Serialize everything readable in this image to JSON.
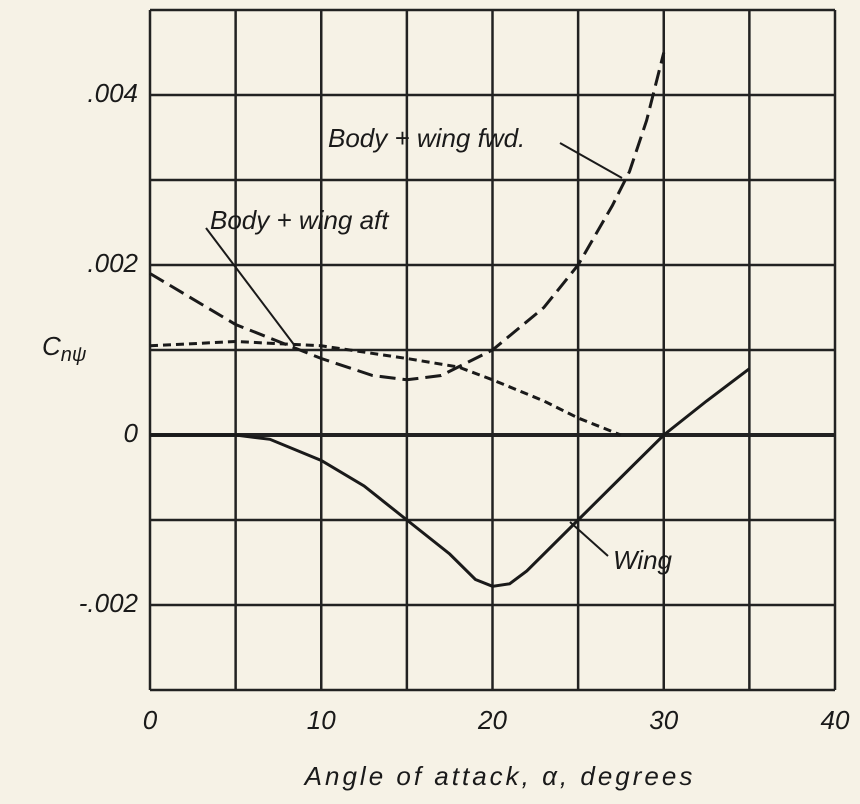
{
  "chart_data": {
    "type": "line",
    "xlabel": "Angle of attack, α, degrees",
    "ylabel": {
      "symbol": "C",
      "subscript": "nψ"
    },
    "xlim": [
      0,
      40
    ],
    "ylim": [
      -0.003,
      0.005
    ],
    "xticks": [
      0,
      10,
      20,
      30,
      40
    ],
    "xminor": [
      5,
      15,
      25,
      35
    ],
    "yticks": [
      {
        "value": -0.002,
        "label": "-.002"
      },
      0,
      {
        "value": 0.002,
        "label": ".002"
      },
      {
        "value": 0.004,
        "label": ".004"
      }
    ],
    "yminor": [
      -0.003,
      -0.001,
      0.001,
      0.003,
      0.005
    ],
    "grid": true,
    "series": [
      {
        "name": "Wing",
        "color": "#1a1a1a",
        "dash": "solid",
        "x": [
          0,
          5,
          7,
          10,
          12.5,
          15,
          17.5,
          19,
          20,
          21,
          22,
          25,
          27.5,
          30,
          32.5,
          35
        ],
        "values": [
          0,
          0,
          -5e-05,
          -0.0003,
          -0.0006,
          -0.001,
          -0.0014,
          -0.0017,
          -0.00178,
          -0.00175,
          -0.0016,
          -0.001,
          -0.0005,
          0,
          0.0004,
          0.00078
        ]
      },
      {
        "name": "Body + wing fwd.",
        "color": "#1a1a1a",
        "dash": "long",
        "x": [
          0,
          5,
          10,
          13,
          15,
          17,
          20,
          23,
          25,
          27,
          28,
          29,
          30
        ],
        "values": [
          0.0019,
          0.0013,
          0.0009,
          0.0007,
          0.00065,
          0.0007,
          0.001,
          0.0015,
          0.002,
          0.0027,
          0.0031,
          0.0037,
          0.0045
        ]
      },
      {
        "name": "Body + wing aft",
        "color": "#1a1a1a",
        "dash": "short",
        "x": [
          0,
          5,
          10,
          15,
          18,
          20,
          23,
          25,
          27.5
        ],
        "values": [
          0.00105,
          0.0011,
          0.00105,
          0.0009,
          0.0008,
          0.00065,
          0.0004,
          0.0002,
          0
        ]
      }
    ]
  }
}
